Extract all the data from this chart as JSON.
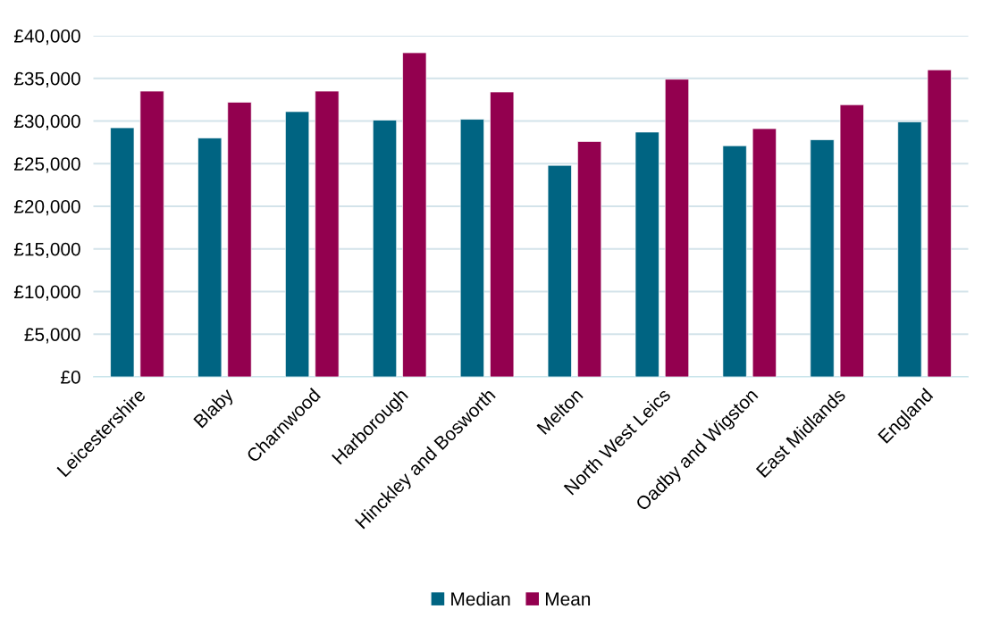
{
  "chart_data": {
    "type": "bar",
    "categories": [
      "Leicestershire",
      "Blaby",
      "Charnwood",
      "Harborough",
      "Hinckley and Bosworth",
      "Melton",
      "North West Leics",
      "Oadby and Wigston",
      "East Midlands",
      "England"
    ],
    "series": [
      {
        "name": "Median",
        "color": "#006482",
        "values": [
          29200,
          28000,
          31100,
          30100,
          30200,
          24800,
          28700,
          27100,
          27800,
          29900
        ]
      },
      {
        "name": "Mean",
        "color": "#93004f",
        "values": [
          33500,
          32200,
          33500,
          38000,
          33400,
          27600,
          34900,
          29100,
          31900,
          36000
        ]
      }
    ],
    "ylim": [
      0,
      40000
    ],
    "yticks": [
      {
        "value": 0,
        "label": "£0"
      },
      {
        "value": 5000,
        "label": "£5,000"
      },
      {
        "value": 10000,
        "label": "£10,000"
      },
      {
        "value": 15000,
        "label": "£15,000"
      },
      {
        "value": 20000,
        "label": "£20,000"
      },
      {
        "value": 25000,
        "label": "£25,000"
      },
      {
        "value": 30000,
        "label": "£30,000"
      },
      {
        "value": 35000,
        "label": "£35,000"
      },
      {
        "value": 40000,
        "label": "£40,000"
      }
    ],
    "grid": "y",
    "legend": "bottom"
  }
}
